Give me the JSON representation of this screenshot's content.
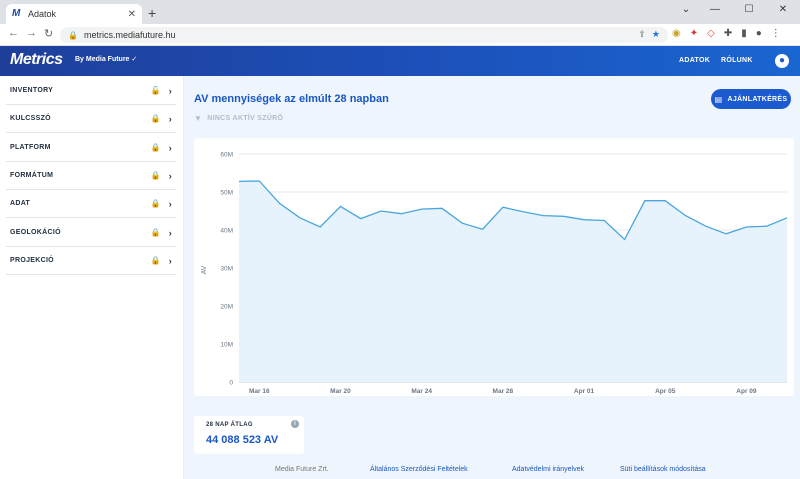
{
  "browser": {
    "tab_title": "Adatok",
    "url": "metrics.mediafuture.hu"
  },
  "header": {
    "logo": "Metrics",
    "logo_sub": "By Media Future ✓",
    "nav": [
      "ADATOK",
      "RÓLUNK"
    ]
  },
  "sidebar": {
    "items": [
      {
        "label": "INVENTORY",
        "locked": false
      },
      {
        "label": "KULCSSZÓ",
        "locked": true
      },
      {
        "label": "PLATFORM",
        "locked": true
      },
      {
        "label": "FORMÁTUM",
        "locked": true
      },
      {
        "label": "ADAT",
        "locked": true
      },
      {
        "label": "GEOLOKÁCIÓ",
        "locked": true
      },
      {
        "label": "PROJEKCIÓ",
        "locked": true
      }
    ]
  },
  "main": {
    "title": "AV mennyiségek az elmúlt 28 napban",
    "filter": "NINCS AKTÍV SZŰRŐ",
    "offer_button": "AJÁNLATKÉRÉS",
    "avg_label": "28 NAP ÁTLAG",
    "avg_value": "44 088 523 AV"
  },
  "footer": {
    "company": "Media Future Zrt.",
    "links": [
      "Általános Szerződési Feltételek",
      "Adatvédelmi irányelvek",
      "Süti beállítások módosítása"
    ]
  },
  "colors": {
    "accent": "#1a57c4",
    "line": "#4aa5dc",
    "area": "#e6f2fc"
  },
  "chart_data": {
    "type": "area",
    "ylabel": "AV",
    "ylim": [
      0,
      60000000
    ],
    "y_ticks": [
      "0",
      "10M",
      "20M",
      "30M",
      "40M",
      "50M",
      "60M"
    ],
    "x_ticks": [
      "Mar 16",
      "Mar 20",
      "Mar 24",
      "Mar 28",
      "Apr 01",
      "Apr 05",
      "Apr 09"
    ],
    "grid": true,
    "series": [
      {
        "values": [
          52800000,
          52900000,
          47000000,
          43200000,
          40800000,
          46200000,
          43000000,
          45000000,
          44300000,
          45500000,
          45700000,
          41800000,
          40200000,
          46000000,
          44800000,
          43800000,
          43600000,
          42700000,
          42500000,
          37500000,
          47700000,
          47700000,
          43800000,
          41000000,
          39000000,
          40800000,
          41000000,
          43200000
        ]
      }
    ]
  }
}
